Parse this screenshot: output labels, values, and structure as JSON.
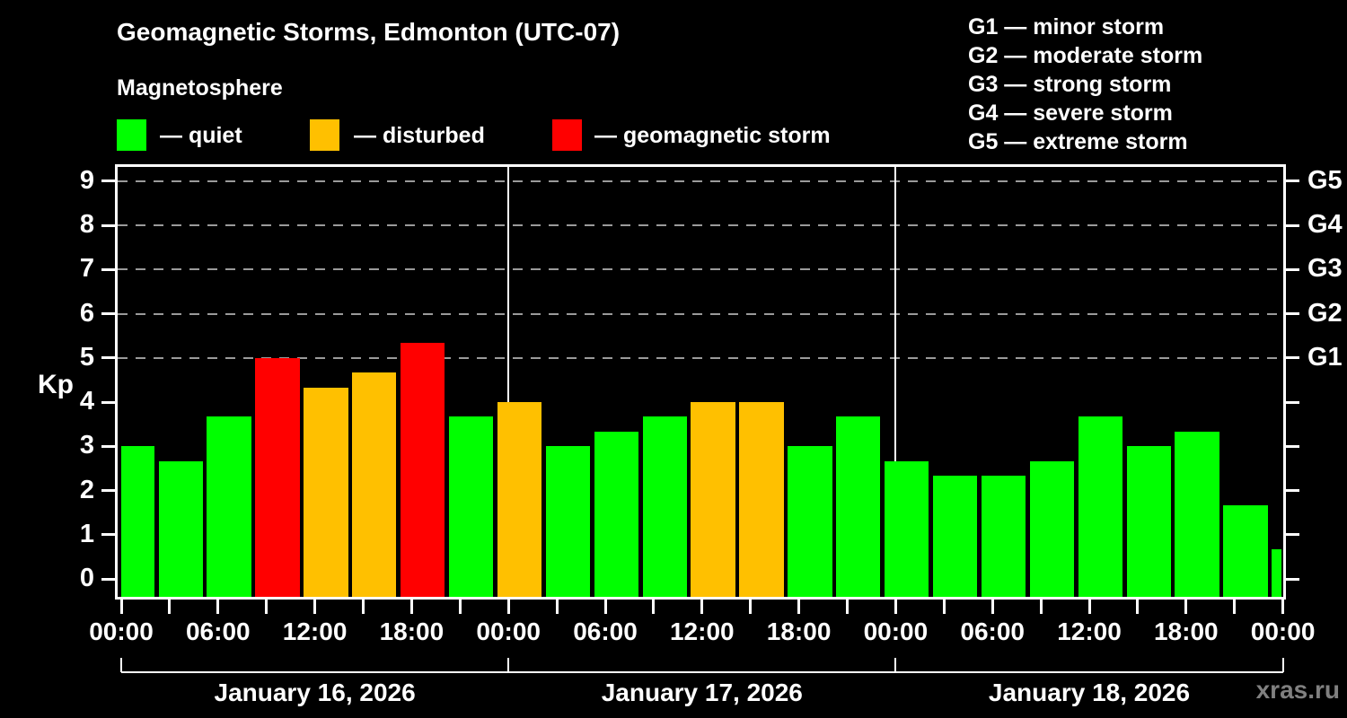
{
  "header": {
    "title": "Geomagnetic Storms, Edmonton (UTC-07)",
    "subtitle": "Magnetosphere"
  },
  "legend": {
    "items": [
      {
        "status": "quiet",
        "label": "— quiet",
        "color": "#00ff00"
      },
      {
        "status": "disturbed",
        "label": "— disturbed",
        "color": "#ffc000"
      },
      {
        "status": "storm",
        "label": "— geomagnetic storm",
        "color": "#ff0000"
      }
    ]
  },
  "storm_scale": [
    "G1 — minor storm",
    "G2 — moderate storm",
    "G3 — strong storm",
    "G4 — severe storm",
    "G5 — extreme storm"
  ],
  "watermark": "xras.ru",
  "chart_data": {
    "type": "bar",
    "title": "Geomagnetic Storms, Edmonton (UTC-07)",
    "ylabel": "Kp",
    "ylim": [
      0,
      9
    ],
    "y_ticks": [
      0,
      1,
      2,
      3,
      4,
      5,
      6,
      7,
      8,
      9
    ],
    "gridlines_at_kp": [
      5,
      6,
      7,
      8,
      9
    ],
    "right_axis": [
      {
        "kp": 5,
        "label": "G1"
      },
      {
        "kp": 6,
        "label": "G2"
      },
      {
        "kp": 7,
        "label": "G3"
      },
      {
        "kp": 8,
        "label": "G4"
      },
      {
        "kp": 9,
        "label": "G5"
      }
    ],
    "x_tick_interval_hours": 3,
    "x_label_interval_hours": 6,
    "x_labels": [
      "00:00",
      "06:00",
      "12:00",
      "18:00",
      "00:00",
      "06:00",
      "12:00",
      "18:00",
      "00:00",
      "06:00",
      "12:00",
      "18:00",
      "00:00"
    ],
    "slot_start_times": [
      "00:00",
      "03:00",
      "06:00",
      "09:00",
      "12:00",
      "15:00",
      "18:00",
      "21:00"
    ],
    "colors": {
      "quiet": "#00ff00",
      "disturbed": "#ffc000",
      "storm": "#ff0000"
    },
    "days": [
      {
        "date": "January 16, 2026",
        "kp": [
          3.0,
          2.67,
          3.67,
          5.0,
          4.33,
          4.67,
          5.33,
          3.67
        ],
        "status": [
          "quiet",
          "quiet",
          "quiet",
          "storm",
          "disturbed",
          "disturbed",
          "storm",
          "quiet"
        ]
      },
      {
        "date": "January 17, 2026",
        "kp": [
          4.0,
          3.0,
          3.33,
          3.67,
          4.0,
          4.0,
          3.0,
          3.67
        ],
        "status": [
          "disturbed",
          "quiet",
          "quiet",
          "quiet",
          "disturbed",
          "disturbed",
          "quiet",
          "quiet"
        ]
      },
      {
        "date": "January 18, 2026",
        "kp": [
          2.67,
          2.33,
          2.33,
          2.67,
          3.67,
          3.0,
          3.33,
          1.67
        ],
        "status": [
          "quiet",
          "quiet",
          "quiet",
          "quiet",
          "quiet",
          "quiet",
          "quiet",
          "quiet"
        ]
      }
    ],
    "trailing_bar": {
      "time": "00:00",
      "kp": 0.67,
      "status": "quiet"
    }
  }
}
